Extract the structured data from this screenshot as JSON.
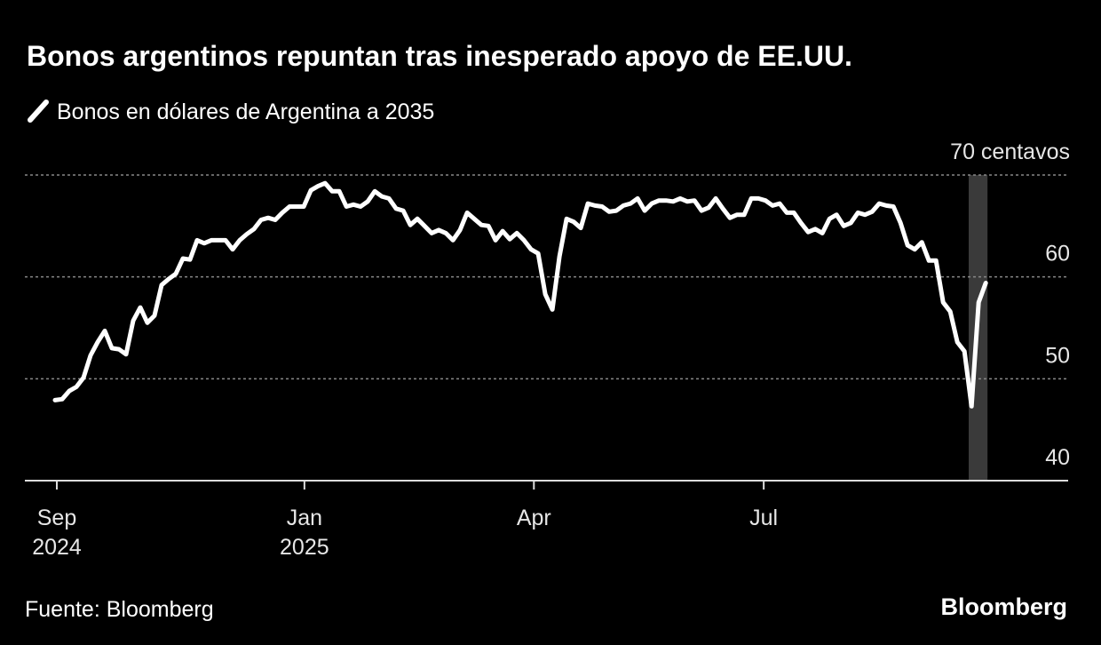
{
  "chart_data": {
    "type": "line",
    "title": "Bonos argentinos repuntan tras inesperado apoyo de EE.UU.",
    "series": [
      {
        "name": "Bonos en dólares de Argentina a 2035",
        "color": "#ffffff",
        "values": [
          47.9,
          48.0,
          48.8,
          49.2,
          50.1,
          52.3,
          53.6,
          54.7,
          53.0,
          52.9,
          52.4,
          55.7,
          57.0,
          55.5,
          56.2,
          59.2,
          59.8,
          60.3,
          61.8,
          61.7,
          63.6,
          63.3,
          63.6,
          63.6,
          63.6,
          62.7,
          63.6,
          64.2,
          64.7,
          65.6,
          65.8,
          65.6,
          66.3,
          66.9,
          66.9,
          66.9,
          68.5,
          68.9,
          69.2,
          68.4,
          68.4,
          66.9,
          67.1,
          66.9,
          67.4,
          68.4,
          67.9,
          67.7,
          66.7,
          66.5,
          65.1,
          65.7,
          65.0,
          64.3,
          64.6,
          64.3,
          63.6,
          64.6,
          66.3,
          65.7,
          65.1,
          65.0,
          63.6,
          64.5,
          63.7,
          64.3,
          63.6,
          62.7,
          62.3,
          58.3,
          56.8,
          62.0,
          65.7,
          65.4,
          64.8,
          67.2,
          67.0,
          66.9,
          66.4,
          66.5,
          67.0,
          67.2,
          67.7,
          66.5,
          67.2,
          67.5,
          67.5,
          67.4,
          67.7,
          67.4,
          67.5,
          66.5,
          66.8,
          67.7,
          66.7,
          65.8,
          66.1,
          66.1,
          67.7,
          67.7,
          67.5,
          67.0,
          67.2,
          66.3,
          66.3,
          65.3,
          64.4,
          64.7,
          64.3,
          65.7,
          66.1,
          65.0,
          65.3,
          66.3,
          66.1,
          66.4,
          67.2,
          67.0,
          66.9,
          65.3,
          63.1,
          62.7,
          63.4,
          61.6,
          61.6,
          57.5,
          56.6,
          53.6,
          52.7,
          47.3,
          57.5,
          59.4
        ]
      }
    ],
    "xlim": [
      -4.25,
      142.6
    ],
    "xticks": [
      {
        "value": 0.25,
        "label": "Sep"
      },
      {
        "value": 35.1,
        "label": "Jan"
      },
      {
        "value": 67.4,
        "label": "Apr"
      },
      {
        "value": 99.75,
        "label": "Jul"
      }
    ],
    "x_year_labels": [
      {
        "value": 0.25,
        "label": "2024"
      },
      {
        "value": 35.1,
        "label": "2025"
      }
    ],
    "ylim": [
      40,
      70
    ],
    "yticks": [
      40,
      50,
      60,
      {
        "value": 70,
        "label": "70 centavos"
      }
    ],
    "grid": true,
    "highlight": {
      "x": [
        128.6,
        131.25
      ],
      "color": "#3a3a3a"
    },
    "source": "Fuente: Bloomberg",
    "logo": "Bloomberg"
  }
}
